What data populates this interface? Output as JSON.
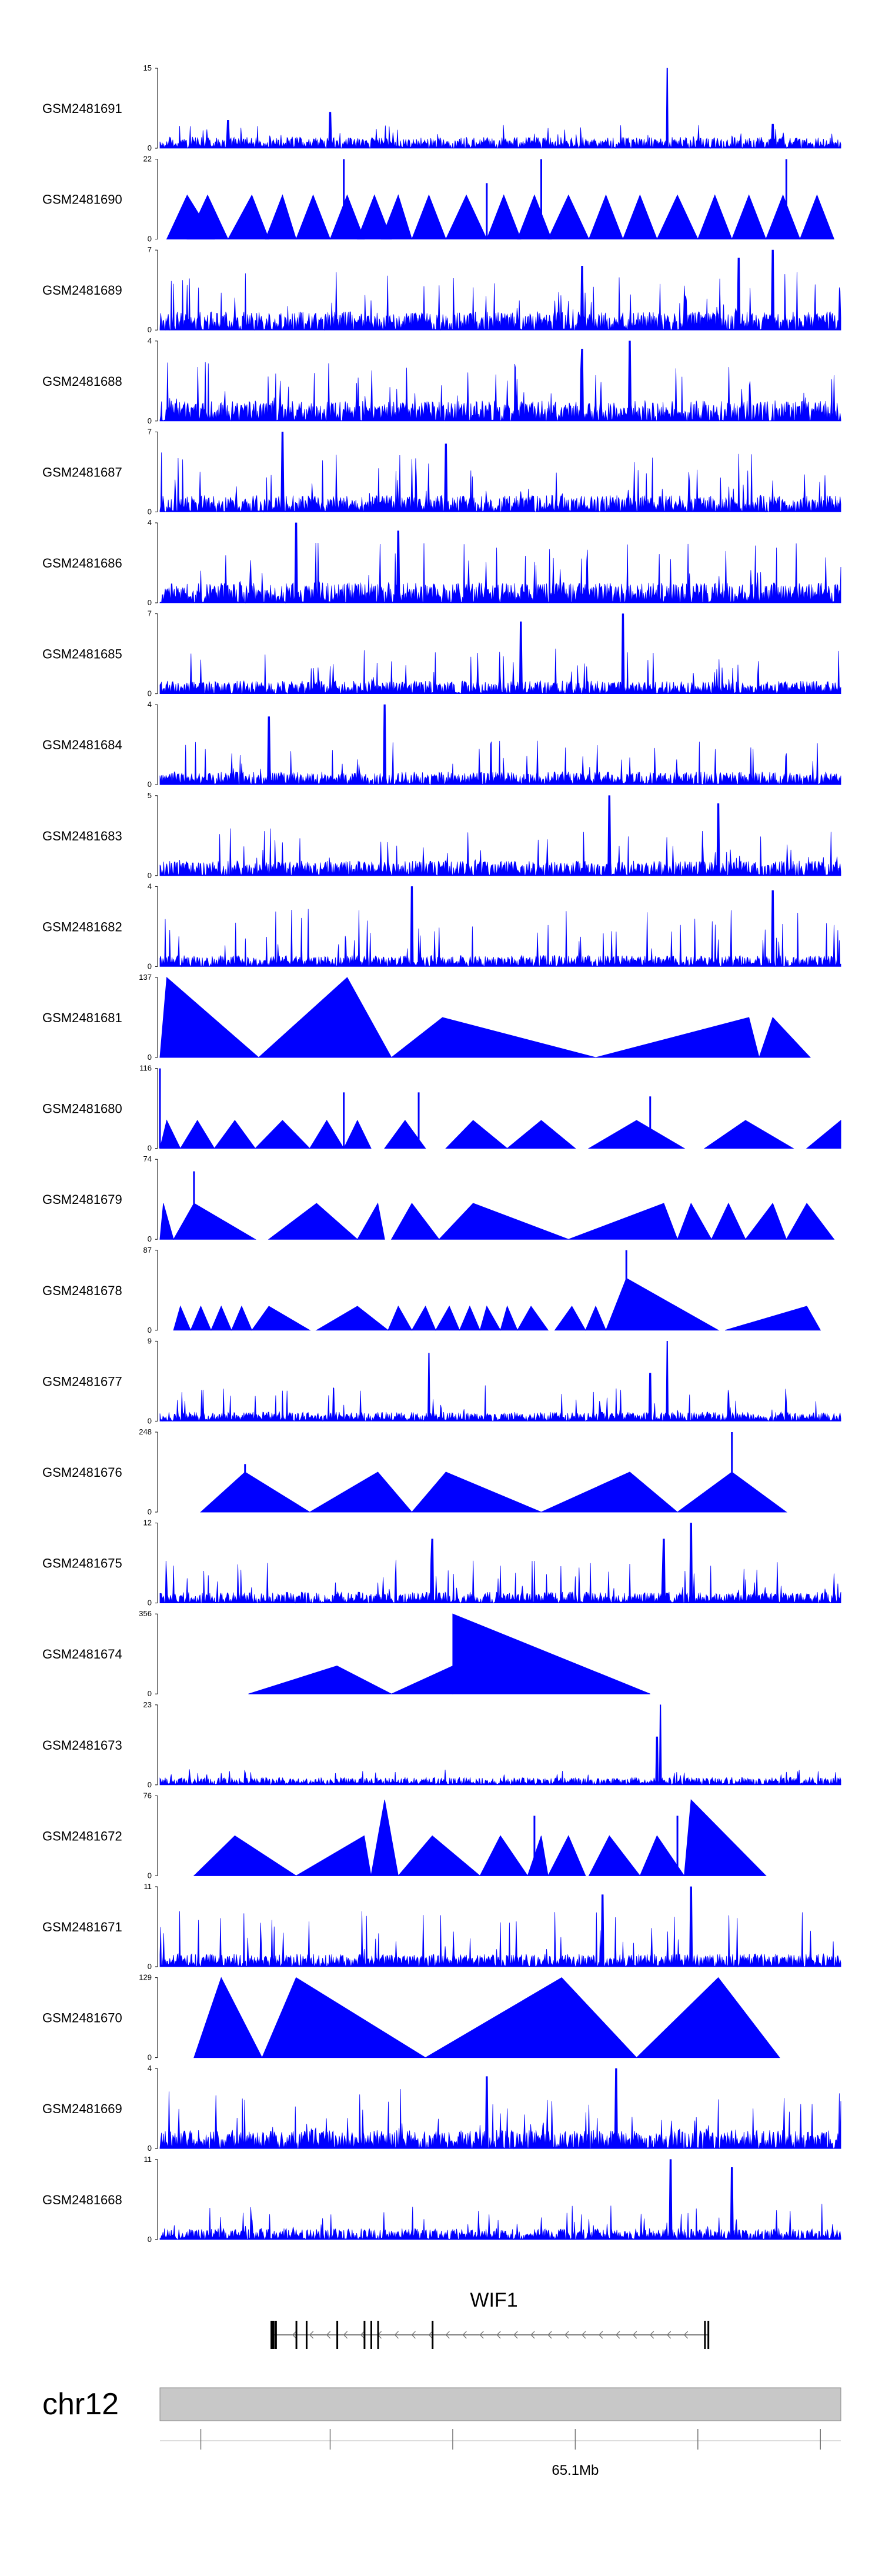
{
  "chart_data": {
    "type": "area",
    "title": "",
    "xlabel": "",
    "ylabel": "",
    "track_color": "#0000ff",
    "x_range": [
      0,
      1
    ],
    "tracks": [
      {
        "name": "GSM2481691",
        "ymax": "15",
        "ymin": "0",
        "style": "dense",
        "seed": 11,
        "baseline": 0.12,
        "spike": 0.3,
        "peaks": [
          [
            0.745,
            1.0
          ],
          [
            0.1,
            0.35
          ],
          [
            0.25,
            0.45
          ],
          [
            0.9,
            0.3
          ]
        ]
      },
      {
        "name": "GSM2481690",
        "ymax": "22",
        "ymin": "0",
        "style": "triangles",
        "seed": 12,
        "tri": [
          [
            0.01,
            0.04,
            0.08,
            0.55
          ],
          [
            0.04,
            0.07,
            0.1,
            0.55
          ],
          [
            0.1,
            0.135,
            0.16,
            0.55
          ],
          [
            0.155,
            0.18,
            0.2,
            0.55
          ],
          [
            0.2,
            0.225,
            0.25,
            0.55
          ],
          [
            0.25,
            0.275,
            0.3,
            0.55
          ],
          [
            0.29,
            0.315,
            0.34,
            0.55
          ],
          [
            0.325,
            0.35,
            0.37,
            0.55
          ],
          [
            0.37,
            0.395,
            0.42,
            0.55
          ],
          [
            0.42,
            0.45,
            0.48,
            0.55
          ],
          [
            0.48,
            0.505,
            0.53,
            0.55
          ],
          [
            0.525,
            0.55,
            0.575,
            0.55
          ],
          [
            0.57,
            0.6,
            0.63,
            0.55
          ],
          [
            0.63,
            0.655,
            0.68,
            0.55
          ],
          [
            0.68,
            0.705,
            0.73,
            0.55
          ],
          [
            0.73,
            0.76,
            0.79,
            0.55
          ],
          [
            0.79,
            0.815,
            0.84,
            0.55
          ],
          [
            0.84,
            0.865,
            0.89,
            0.55
          ],
          [
            0.89,
            0.915,
            0.94,
            0.55
          ],
          [
            0.94,
            0.965,
            0.99,
            0.55
          ]
        ],
        "spikes": [
          [
            0.27,
            1.0
          ],
          [
            0.56,
            1.0
          ],
          [
            0.92,
            1.0
          ],
          [
            0.48,
            0.7
          ]
        ]
      },
      {
        "name": "GSM2481689",
        "ymax": "7",
        "ymin": "0",
        "style": "dense",
        "seed": 13,
        "baseline": 0.2,
        "spike": 0.75,
        "peaks": [
          [
            0.9,
            1.0
          ],
          [
            0.85,
            0.9
          ],
          [
            0.62,
            0.8
          ]
        ]
      },
      {
        "name": "GSM2481688",
        "ymax": "4",
        "ymin": "0",
        "style": "dense",
        "seed": 14,
        "baseline": 0.22,
        "spike": 0.75,
        "peaks": [
          [
            0.69,
            1.0
          ],
          [
            0.62,
            0.9
          ]
        ]
      },
      {
        "name": "GSM2481687",
        "ymax": "7",
        "ymin": "0",
        "style": "dense",
        "seed": 15,
        "baseline": 0.18,
        "spike": 0.75,
        "peaks": [
          [
            0.18,
            1.0
          ],
          [
            0.42,
            0.85
          ]
        ]
      },
      {
        "name": "GSM2481686",
        "ymax": "4",
        "ymin": "0",
        "style": "dense",
        "seed": 16,
        "baseline": 0.22,
        "spike": 0.75,
        "peaks": [
          [
            0.2,
            1.0
          ],
          [
            0.35,
            0.9
          ]
        ]
      },
      {
        "name": "GSM2481685",
        "ymax": "7",
        "ymin": "0",
        "style": "dense",
        "seed": 17,
        "baseline": 0.14,
        "spike": 0.6,
        "peaks": [
          [
            0.68,
            1.0
          ],
          [
            0.53,
            0.9
          ]
        ]
      },
      {
        "name": "GSM2481684",
        "ymax": "4",
        "ymin": "0",
        "style": "dense",
        "seed": 18,
        "baseline": 0.14,
        "spike": 0.55,
        "peaks": [
          [
            0.33,
            1.0
          ],
          [
            0.16,
            0.85
          ]
        ]
      },
      {
        "name": "GSM2481683",
        "ymax": "5",
        "ymin": "0",
        "style": "dense",
        "seed": 19,
        "baseline": 0.16,
        "spike": 0.6,
        "peaks": [
          [
            0.66,
            1.0
          ],
          [
            0.82,
            0.9
          ]
        ]
      },
      {
        "name": "GSM2481682",
        "ymax": "4",
        "ymin": "0",
        "style": "dense",
        "seed": 20,
        "baseline": 0.12,
        "spike": 0.75,
        "peaks": [
          [
            0.37,
            1.0
          ],
          [
            0.9,
            0.95
          ]
        ]
      },
      {
        "name": "GSM2481681",
        "ymax": "137",
        "ymin": "0",
        "style": "triangles",
        "seed": 21,
        "tri": [
          [
            0.0,
            0.01,
            0.145,
            1.0
          ],
          [
            0.145,
            0.275,
            0.34,
            1.0
          ],
          [
            0.34,
            0.415,
            0.64,
            0.5
          ],
          [
            0.64,
            0.865,
            0.88,
            0.5
          ],
          [
            0.88,
            0.9,
            0.955,
            0.5
          ]
        ],
        "spikes": []
      },
      {
        "name": "GSM2481680",
        "ymax": "116",
        "ymin": "0",
        "style": "triangles",
        "seed": 22,
        "tri": [
          [
            0.0,
            0.01,
            0.03,
            0.35
          ],
          [
            0.03,
            0.055,
            0.08,
            0.35
          ],
          [
            0.08,
            0.11,
            0.14,
            0.35
          ],
          [
            0.14,
            0.18,
            0.22,
            0.35
          ],
          [
            0.22,
            0.245,
            0.27,
            0.35
          ],
          [
            0.27,
            0.29,
            0.31,
            0.35
          ],
          [
            0.33,
            0.36,
            0.39,
            0.35
          ],
          [
            0.42,
            0.46,
            0.51,
            0.35
          ],
          [
            0.51,
            0.56,
            0.61,
            0.35
          ],
          [
            0.63,
            0.7,
            0.77,
            0.35
          ],
          [
            0.8,
            0.86,
            0.93,
            0.35
          ],
          [
            0.95,
            1.0,
            1.0,
            0.35
          ]
        ],
        "spikes": [
          [
            0.0,
            1.0
          ],
          [
            0.27,
            0.7
          ],
          [
            0.38,
            0.7
          ],
          [
            0.72,
            0.65
          ]
        ]
      },
      {
        "name": "GSM2481679",
        "ymax": "74",
        "ymin": "0",
        "style": "triangles",
        "seed": 23,
        "tri": [
          [
            0.0,
            0.005,
            0.02,
            0.45
          ],
          [
            0.02,
            0.05,
            0.14,
            0.45
          ],
          [
            0.16,
            0.23,
            0.29,
            0.45
          ],
          [
            0.29,
            0.32,
            0.33,
            0.45
          ],
          [
            0.34,
            0.37,
            0.41,
            0.45
          ],
          [
            0.41,
            0.46,
            0.6,
            0.45
          ],
          [
            0.6,
            0.74,
            0.76,
            0.45
          ],
          [
            0.76,
            0.78,
            0.81,
            0.45
          ],
          [
            0.81,
            0.835,
            0.86,
            0.45
          ],
          [
            0.86,
            0.9,
            0.92,
            0.45
          ],
          [
            0.92,
            0.95,
            0.99,
            0.45
          ]
        ],
        "spikes": [
          [
            0.05,
            0.85
          ]
        ]
      },
      {
        "name": "GSM2481678",
        "ymax": "87",
        "ymin": "0",
        "style": "triangles",
        "seed": 24,
        "tri": [
          [
            0.02,
            0.03,
            0.045,
            0.3
          ],
          [
            0.045,
            0.06,
            0.075,
            0.3
          ],
          [
            0.075,
            0.09,
            0.105,
            0.3
          ],
          [
            0.105,
            0.12,
            0.135,
            0.3
          ],
          [
            0.135,
            0.16,
            0.22,
            0.3
          ],
          [
            0.23,
            0.29,
            0.335,
            0.3
          ],
          [
            0.335,
            0.35,
            0.37,
            0.3
          ],
          [
            0.37,
            0.39,
            0.405,
            0.3
          ],
          [
            0.405,
            0.425,
            0.44,
            0.3
          ],
          [
            0.44,
            0.455,
            0.47,
            0.3
          ],
          [
            0.47,
            0.48,
            0.5,
            0.3
          ],
          [
            0.5,
            0.51,
            0.525,
            0.3
          ],
          [
            0.525,
            0.545,
            0.57,
            0.3
          ],
          [
            0.58,
            0.605,
            0.625,
            0.3
          ],
          [
            0.625,
            0.64,
            0.655,
            0.3
          ],
          [
            0.655,
            0.685,
            0.82,
            0.65
          ],
          [
            0.83,
            0.95,
            0.97,
            0.3
          ]
        ],
        "spikes": [
          [
            0.685,
            1.0
          ]
        ]
      },
      {
        "name": "GSM2481677",
        "ymax": "9",
        "ymin": "0",
        "style": "dense",
        "seed": 25,
        "baseline": 0.1,
        "spike": 0.45,
        "peaks": [
          [
            0.745,
            1.0
          ],
          [
            0.395,
            0.85
          ],
          [
            0.72,
            0.6
          ]
        ]
      },
      {
        "name": "GSM2481676",
        "ymax": "248",
        "ymin": "0",
        "style": "triangles",
        "seed": 26,
        "tri": [
          [
            0.06,
            0.125,
            0.22,
            0.5
          ],
          [
            0.22,
            0.32,
            0.37,
            0.5
          ],
          [
            0.37,
            0.42,
            0.56,
            0.5
          ],
          [
            0.56,
            0.69,
            0.76,
            0.5
          ],
          [
            0.76,
            0.84,
            0.92,
            0.5
          ]
        ],
        "spikes": [
          [
            0.84,
            1.0
          ],
          [
            0.125,
            0.6
          ]
        ]
      },
      {
        "name": "GSM2481675",
        "ymax": "12",
        "ymin": "0",
        "style": "dense",
        "seed": 27,
        "baseline": 0.12,
        "spike": 0.55,
        "peaks": [
          [
            0.78,
            1.0
          ],
          [
            0.74,
            0.8
          ],
          [
            0.4,
            0.8
          ]
        ]
      },
      {
        "name": "GSM2481674",
        "ymax": "356",
        "ymin": "0",
        "style": "triangles",
        "seed": 28,
        "tri": [
          [
            0.13,
            0.26,
            0.34,
            0.35
          ],
          [
            0.34,
            0.43,
            0.43,
            0.35
          ],
          [
            0.43,
            0.43,
            0.72,
            1.0
          ]
        ],
        "spikes": []
      },
      {
        "name": "GSM2481673",
        "ymax": "23",
        "ymin": "0",
        "style": "dense",
        "seed": 29,
        "baseline": 0.08,
        "spike": 0.2,
        "peaks": [
          [
            0.735,
            1.0
          ],
          [
            0.73,
            0.6
          ]
        ]
      },
      {
        "name": "GSM2481672",
        "ymax": "76",
        "ymin": "0",
        "style": "triangles",
        "seed": 30,
        "tri": [
          [
            0.05,
            0.11,
            0.2,
            0.5
          ],
          [
            0.2,
            0.3,
            0.31,
            0.5
          ],
          [
            0.31,
            0.33,
            0.35,
            0.95
          ],
          [
            0.35,
            0.4,
            0.47,
            0.5
          ],
          [
            0.47,
            0.5,
            0.54,
            0.5
          ],
          [
            0.54,
            0.56,
            0.57,
            0.5
          ],
          [
            0.57,
            0.6,
            0.625,
            0.5
          ],
          [
            0.63,
            0.66,
            0.705,
            0.5
          ],
          [
            0.705,
            0.73,
            0.77,
            0.5
          ],
          [
            0.77,
            0.78,
            0.89,
            0.95
          ]
        ],
        "spikes": [
          [
            0.55,
            0.75
          ],
          [
            0.76,
            0.75
          ]
        ]
      },
      {
        "name": "GSM2481671",
        "ymax": "11",
        "ymin": "0",
        "style": "dense",
        "seed": 31,
        "baseline": 0.14,
        "spike": 0.7,
        "peaks": [
          [
            0.78,
            1.0
          ],
          [
            0.65,
            0.9
          ]
        ]
      },
      {
        "name": "GSM2481670",
        "ymax": "129",
        "ymin": "0",
        "style": "triangles",
        "seed": 32,
        "tri": [
          [
            0.05,
            0.09,
            0.15,
            1.0
          ],
          [
            0.15,
            0.2,
            0.39,
            1.0
          ],
          [
            0.39,
            0.59,
            0.7,
            1.0
          ],
          [
            0.7,
            0.82,
            0.91,
            1.0
          ]
        ],
        "spikes": []
      },
      {
        "name": "GSM2481669",
        "ymax": "4",
        "ymin": "0",
        "style": "dense",
        "seed": 33,
        "baseline": 0.2,
        "spike": 0.75,
        "peaks": [
          [
            0.67,
            1.0
          ],
          [
            0.48,
            0.9
          ]
        ]
      },
      {
        "name": "GSM2481668",
        "ymax": "11",
        "ymin": "0",
        "style": "dense",
        "seed": 34,
        "baseline": 0.12,
        "spike": 0.45,
        "peaks": [
          [
            0.75,
            1.0
          ],
          [
            0.84,
            0.9
          ]
        ]
      }
    ],
    "gene": {
      "name": "WIF1",
      "strand": "-",
      "span": [
        0.165,
        0.805
      ],
      "exons": [
        0.165,
        0.17,
        0.2,
        0.215,
        0.26,
        0.3,
        0.31,
        0.32,
        0.4,
        0.8,
        0.805
      ]
    },
    "ideogram": {
      "chromosome": "chr12",
      "tick_positions": [
        0.06,
        0.25,
        0.43,
        0.61,
        0.79,
        0.97
      ],
      "labeled_tick": {
        "position": 0.61,
        "label": "65.1Mb"
      }
    }
  }
}
